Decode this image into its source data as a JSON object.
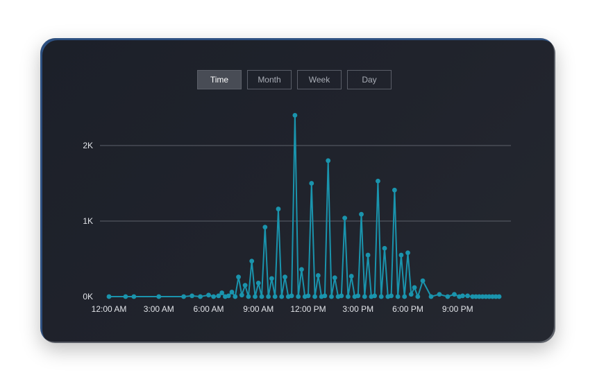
{
  "tabs": [
    {
      "label": "Time",
      "active": true
    },
    {
      "label": "Month",
      "active": false
    },
    {
      "label": "Week",
      "active": false
    },
    {
      "label": "Day",
      "active": false
    }
  ],
  "colors": {
    "series": "#1a94ad",
    "gridline": "#5d616b",
    "card_background": "#1f222b"
  },
  "chart_data": {
    "type": "line",
    "title": "",
    "xlabel": "",
    "ylabel": "",
    "x_unit": "hours since midnight",
    "xlim": [
      0,
      24
    ],
    "ylim": [
      0,
      2400
    ],
    "grid": true,
    "x_ticks": [
      {
        "value": 0,
        "label": "12:00 AM"
      },
      {
        "value": 3,
        "label": "3:00 AM"
      },
      {
        "value": 6,
        "label": "6:00 AM"
      },
      {
        "value": 9,
        "label": "9:00 AM"
      },
      {
        "value": 12,
        "label": "12:00 PM"
      },
      {
        "value": 15,
        "label": "3:00 PM"
      },
      {
        "value": 18,
        "label": "6:00 PM"
      },
      {
        "value": 21,
        "label": "9:00 PM"
      }
    ],
    "y_ticks": [
      {
        "value": 0,
        "label": "0K"
      },
      {
        "value": 1000,
        "label": "1K"
      },
      {
        "value": 2000,
        "label": "2K"
      }
    ],
    "series": [
      {
        "points": [
          [
            0.0,
            0
          ],
          [
            1.0,
            0
          ],
          [
            1.5,
            0
          ],
          [
            3.0,
            0
          ],
          [
            4.5,
            0
          ],
          [
            5.0,
            10
          ],
          [
            5.5,
            0
          ],
          [
            6.0,
            20
          ],
          [
            6.3,
            0
          ],
          [
            6.6,
            10
          ],
          [
            6.8,
            50
          ],
          [
            7.0,
            0
          ],
          [
            7.2,
            10
          ],
          [
            7.4,
            60
          ],
          [
            7.6,
            0
          ],
          [
            7.8,
            260
          ],
          [
            8.0,
            20
          ],
          [
            8.2,
            150
          ],
          [
            8.4,
            0
          ],
          [
            8.6,
            470
          ],
          [
            8.8,
            0
          ],
          [
            9.0,
            180
          ],
          [
            9.2,
            0
          ],
          [
            9.4,
            920
          ],
          [
            9.6,
            0
          ],
          [
            9.8,
            240
          ],
          [
            10.0,
            0
          ],
          [
            10.2,
            1160
          ],
          [
            10.4,
            0
          ],
          [
            10.6,
            260
          ],
          [
            10.8,
            0
          ],
          [
            11.0,
            10
          ],
          [
            11.2,
            2400
          ],
          [
            11.4,
            0
          ],
          [
            11.6,
            360
          ],
          [
            11.8,
            0
          ],
          [
            12.0,
            10
          ],
          [
            12.2,
            1500
          ],
          [
            12.4,
            0
          ],
          [
            12.6,
            280
          ],
          [
            12.8,
            0
          ],
          [
            13.0,
            10
          ],
          [
            13.2,
            1800
          ],
          [
            13.4,
            0
          ],
          [
            13.6,
            250
          ],
          [
            13.8,
            0
          ],
          [
            14.0,
            10
          ],
          [
            14.2,
            1040
          ],
          [
            14.4,
            0
          ],
          [
            14.6,
            270
          ],
          [
            14.8,
            0
          ],
          [
            15.0,
            10
          ],
          [
            15.2,
            1090
          ],
          [
            15.4,
            0
          ],
          [
            15.6,
            550
          ],
          [
            15.8,
            0
          ],
          [
            16.0,
            10
          ],
          [
            16.2,
            1530
          ],
          [
            16.4,
            0
          ],
          [
            16.6,
            640
          ],
          [
            16.8,
            0
          ],
          [
            17.0,
            10
          ],
          [
            17.2,
            1410
          ],
          [
            17.4,
            0
          ],
          [
            17.6,
            550
          ],
          [
            17.8,
            0
          ],
          [
            18.0,
            580
          ],
          [
            18.2,
            30
          ],
          [
            18.4,
            120
          ],
          [
            18.6,
            0
          ],
          [
            18.9,
            210
          ],
          [
            19.4,
            0
          ],
          [
            19.9,
            30
          ],
          [
            20.4,
            0
          ],
          [
            20.8,
            30
          ],
          [
            21.1,
            0
          ],
          [
            21.3,
            10
          ],
          [
            21.6,
            10
          ],
          [
            21.9,
            0
          ],
          [
            22.1,
            0
          ],
          [
            22.3,
            0
          ],
          [
            22.5,
            0
          ],
          [
            22.7,
            0
          ],
          [
            22.9,
            0
          ],
          [
            23.1,
            0
          ],
          [
            23.3,
            0
          ],
          [
            23.5,
            0
          ]
        ]
      }
    ]
  }
}
